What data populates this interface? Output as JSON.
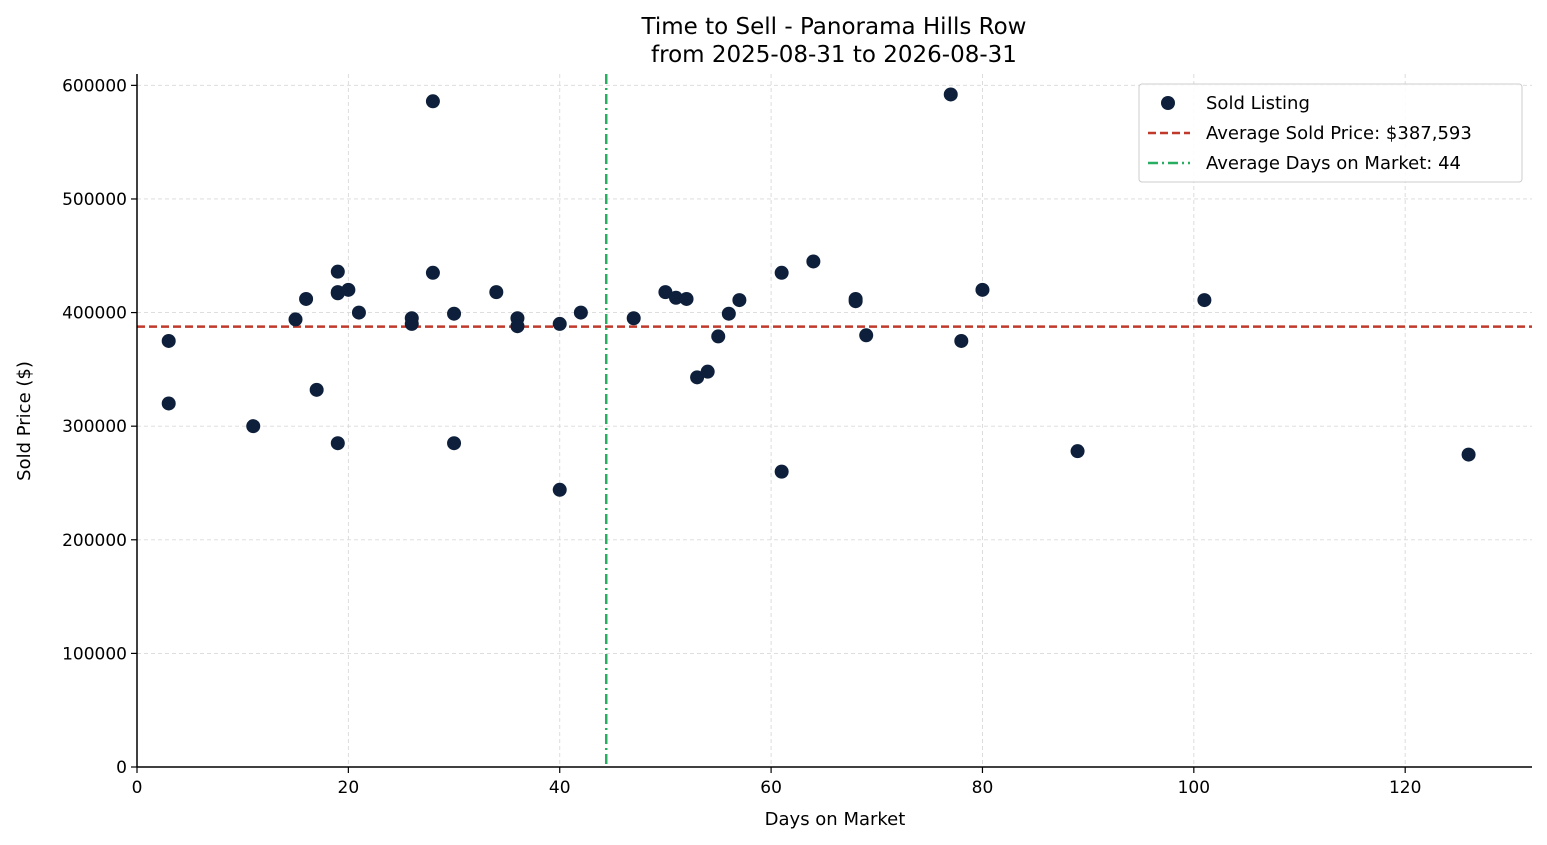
{
  "chart_data": {
    "type": "scatter",
    "title_line1": "Time to Sell - Panorama Hills Row",
    "title_line2": "from 2025-08-31 to 2026-08-31",
    "xlabel": "Days on Market",
    "ylabel": "Sold Price ($)",
    "xlim": [
      0,
      132
    ],
    "ylim": [
      0,
      610000
    ],
    "xticks": [
      0,
      20,
      40,
      60,
      80,
      100,
      120
    ],
    "yticks": [
      0,
      100000,
      200000,
      300000,
      400000,
      500000,
      600000
    ],
    "grid": true,
    "legend_position": "top-right",
    "colors": {
      "points": "#0d1f3a",
      "avg_price_line": "#c0392b",
      "avg_days_line": "#27ae60",
      "axis": "#000000"
    },
    "series": [
      {
        "name": "Sold Listing",
        "points": [
          {
            "x": 3,
            "y": 375000
          },
          {
            "x": 3,
            "y": 320000
          },
          {
            "x": 11,
            "y": 300000
          },
          {
            "x": 15,
            "y": 394000
          },
          {
            "x": 16,
            "y": 412000
          },
          {
            "x": 17,
            "y": 332000
          },
          {
            "x": 19,
            "y": 436000
          },
          {
            "x": 19,
            "y": 417000
          },
          {
            "x": 19,
            "y": 418000
          },
          {
            "x": 19,
            "y": 285000
          },
          {
            "x": 20,
            "y": 420000
          },
          {
            "x": 21,
            "y": 400000
          },
          {
            "x": 26,
            "y": 395000
          },
          {
            "x": 26,
            "y": 390000
          },
          {
            "x": 28,
            "y": 586000
          },
          {
            "x": 28,
            "y": 435000
          },
          {
            "x": 30,
            "y": 399000
          },
          {
            "x": 30,
            "y": 285000
          },
          {
            "x": 34,
            "y": 418000
          },
          {
            "x": 36,
            "y": 395000
          },
          {
            "x": 36,
            "y": 388000
          },
          {
            "x": 40,
            "y": 390000
          },
          {
            "x": 40,
            "y": 244000
          },
          {
            "x": 42,
            "y": 400000
          },
          {
            "x": 47,
            "y": 395000
          },
          {
            "x": 50,
            "y": 418000
          },
          {
            "x": 51,
            "y": 413000
          },
          {
            "x": 52,
            "y": 412000
          },
          {
            "x": 53,
            "y": 343000
          },
          {
            "x": 54,
            "y": 348000
          },
          {
            "x": 55,
            "y": 379000
          },
          {
            "x": 56,
            "y": 399000
          },
          {
            "x": 57,
            "y": 411000
          },
          {
            "x": 61,
            "y": 435000
          },
          {
            "x": 61,
            "y": 260000
          },
          {
            "x": 64,
            "y": 445000
          },
          {
            "x": 68,
            "y": 412000
          },
          {
            "x": 68,
            "y": 410000
          },
          {
            "x": 69,
            "y": 380000
          },
          {
            "x": 77,
            "y": 592000
          },
          {
            "x": 78,
            "y": 375000
          },
          {
            "x": 80,
            "y": 420000
          },
          {
            "x": 89,
            "y": 278000
          },
          {
            "x": 101,
            "y": 411000
          },
          {
            "x": 126,
            "y": 275000
          }
        ]
      }
    ],
    "avg_sold_price": 387593,
    "avg_days_on_market": 44.4,
    "legend": [
      {
        "label": "Sold Listing",
        "style": "marker"
      },
      {
        "label": "Average Sold Price: $387,593",
        "style": "dashed"
      },
      {
        "label": "Average Days on Market: 44",
        "style": "dashdot"
      }
    ]
  }
}
